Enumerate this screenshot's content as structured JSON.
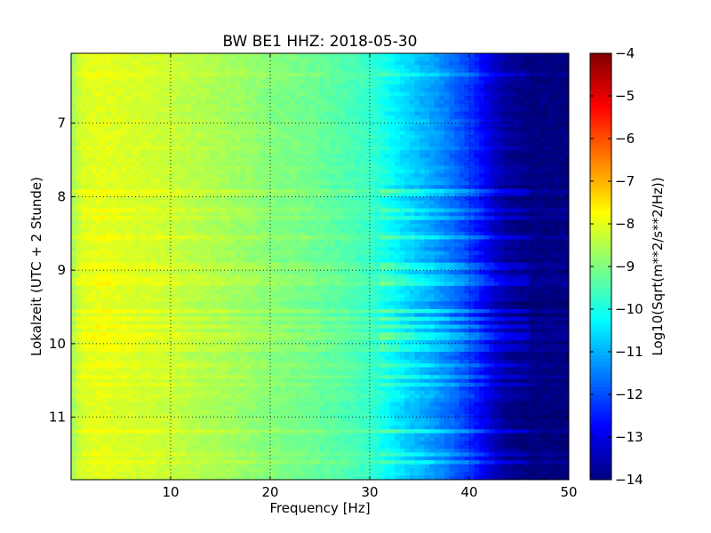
{
  "chart_data": {
    "type": "heatmap",
    "title": "BW BE1 HHZ: 2018-05-30",
    "xlabel": "Frequency [Hz]",
    "ylabel": "Lokalzeit (UTC + 2 Stunde)",
    "xlim": [
      0,
      50
    ],
    "ylim": [
      11.85,
      6.05
    ],
    "y_inverted": true,
    "x_ticks": [
      10,
      20,
      30,
      40,
      50
    ],
    "x_tick_labels": [
      "10",
      "20",
      "30",
      "40",
      "50"
    ],
    "y_ticks": [
      7,
      8,
      9,
      10,
      11
    ],
    "y_tick_labels": [
      "7",
      "8",
      "9",
      "10",
      "11"
    ],
    "grid": true,
    "colormap": "jet",
    "colorbar": {
      "label": "Log10(Sqrt(m**2/s**2/Hz))",
      "min": -14,
      "max": -4,
      "ticks": [
        -4,
        -5,
        -6,
        -7,
        -8,
        -9,
        -10,
        -11,
        -12,
        -13,
        -14
      ],
      "tick_labels": [
        "−4",
        "−5",
        "−6",
        "−7",
        "−8",
        "−9",
        "−10",
        "−11",
        "−12",
        "−13",
        "−14"
      ]
    },
    "spectral_profile": {
      "frequency_hz": [
        0,
        1,
        3,
        5,
        8,
        10,
        13,
        15,
        18,
        20,
        23,
        25,
        28,
        30,
        32,
        34,
        36,
        38,
        40,
        41,
        42,
        43,
        44,
        46,
        50
      ],
      "log10_amplitude": [
        -8.8,
        -8.1,
        -8.0,
        -8.1,
        -8.2,
        -8.3,
        -8.5,
        -8.6,
        -8.8,
        -8.95,
        -9.1,
        -9.25,
        -9.5,
        -9.7,
        -10.2,
        -10.7,
        -11.1,
        -11.6,
        -12.2,
        -12.6,
        -13.1,
        -13.5,
        -13.8,
        -14.0,
        -14.0
      ]
    },
    "strong_noise_bands_hour": [
      6.35,
      7.95,
      8.2,
      8.3,
      8.55,
      8.95,
      9.1,
      9.2,
      9.55,
      9.65,
      9.75,
      9.9,
      10.05,
      10.3,
      10.45,
      10.55,
      11.2,
      11.5,
      11.63
    ]
  }
}
